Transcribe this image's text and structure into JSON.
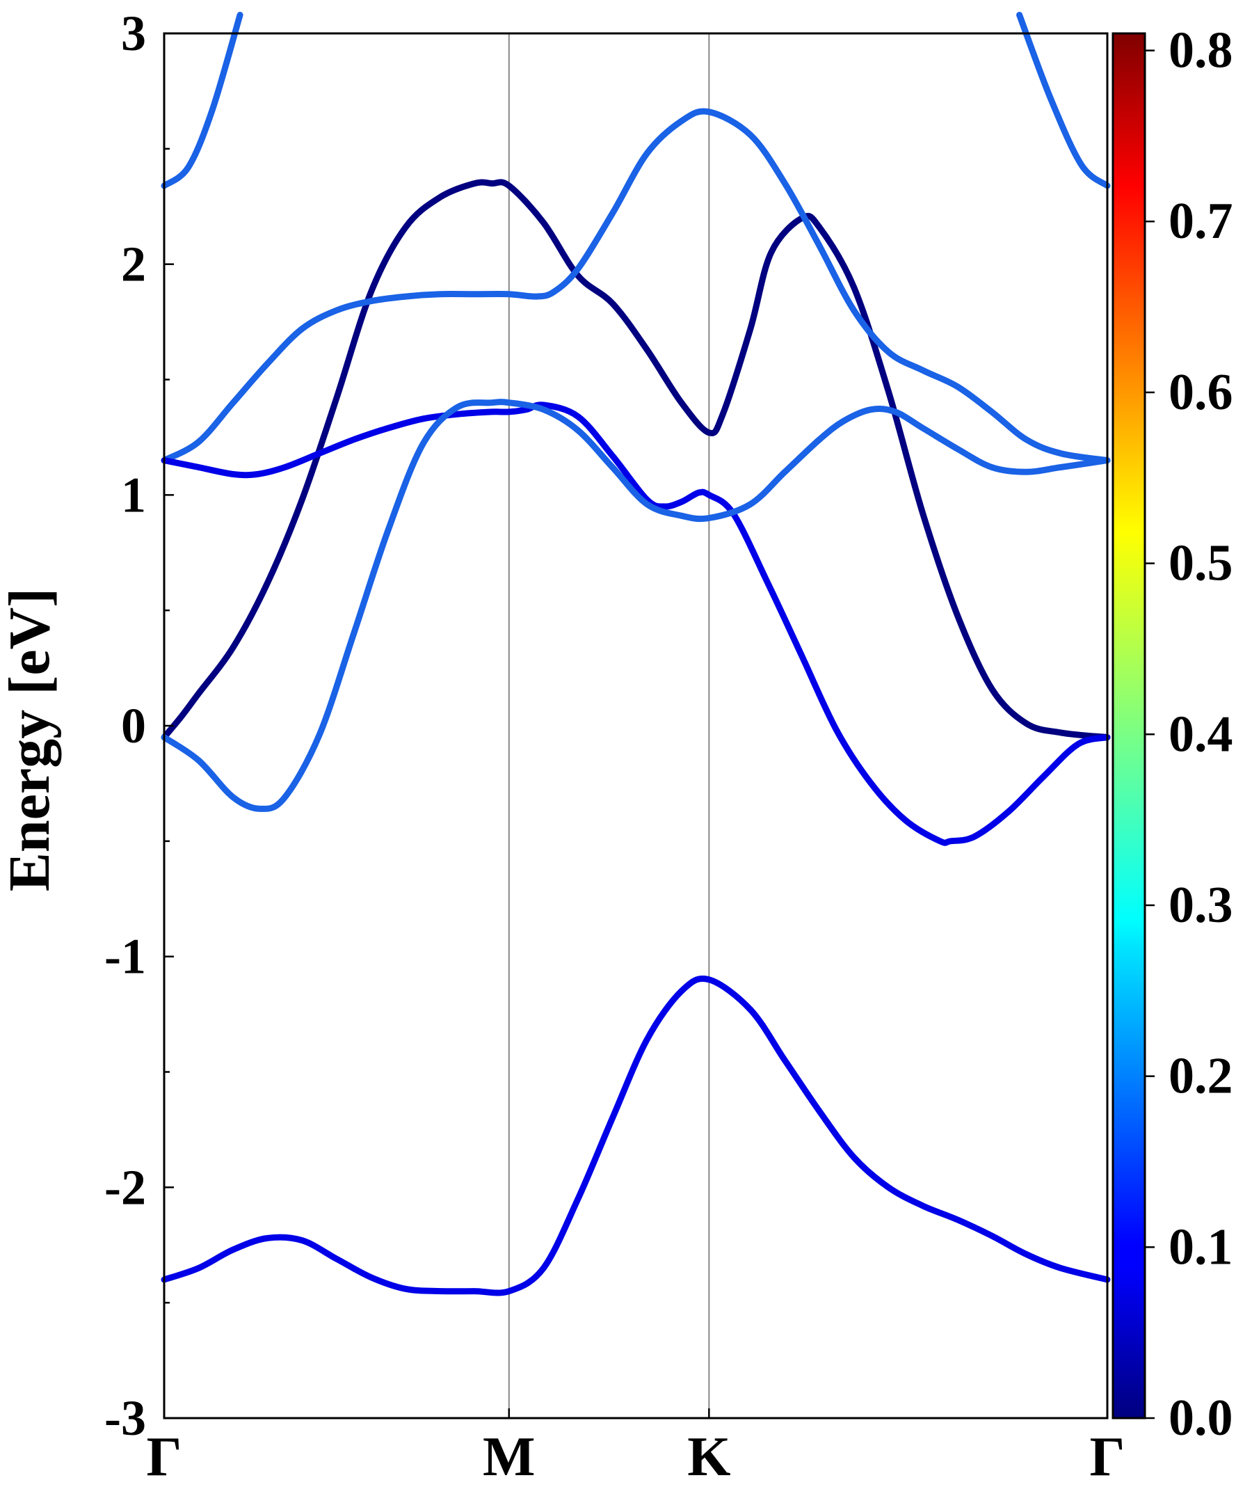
{
  "chart_data": {
    "type": "line",
    "title": "",
    "xlabel": "",
    "ylabel": "Energy [eV]",
    "x_ticks": [
      {
        "label": "Γ",
        "pos": 0
      },
      {
        "label": "M",
        "pos": 1
      },
      {
        "label": "K",
        "pos": 1.58
      },
      {
        "label": "Γ",
        "pos": 2.735
      }
    ],
    "xlim": [
      0,
      2.735
    ],
    "ylim": [
      -3,
      3
    ],
    "y_ticks": [
      "-3",
      "-2",
      "-1",
      "0",
      "1",
      "2",
      "3"
    ],
    "grid": false,
    "colorbar": {
      "colormap": "jet",
      "range": [
        0,
        0.81
      ],
      "ticks": [
        "0.0",
        "0.1",
        "0.2",
        "0.3",
        "0.4",
        "0.5",
        "0.6",
        "0.7",
        "0.8"
      ]
    },
    "series": [
      {
        "color": "#1A62E6",
        "points": [
          [
            0,
            2.34
          ],
          [
            0.07,
            2.42
          ],
          [
            0.14,
            2.67
          ],
          [
            0.22,
            3.08
          ]
        ]
      },
      {
        "color": "#1A62E6",
        "points": [
          [
            2.48,
            3.08
          ],
          [
            2.57,
            2.72
          ],
          [
            2.66,
            2.43
          ],
          [
            2.735,
            2.34
          ]
        ]
      },
      {
        "color": "#000080",
        "points": [
          [
            0,
            -0.05
          ],
          [
            0.05,
            0.04
          ],
          [
            0.1,
            0.14
          ],
          [
            0.2,
            0.34
          ],
          [
            0.3,
            0.62
          ],
          [
            0.4,
            0.98
          ],
          [
            0.5,
            1.42
          ],
          [
            0.6,
            1.88
          ],
          [
            0.7,
            2.16
          ],
          [
            0.8,
            2.29
          ],
          [
            0.9,
            2.35
          ],
          [
            0.95,
            2.35
          ],
          [
            1.0,
            2.34
          ],
          [
            1.1,
            2.18
          ],
          [
            1.2,
            1.95
          ],
          [
            1.3,
            1.83
          ],
          [
            1.4,
            1.63
          ],
          [
            1.5,
            1.4
          ],
          [
            1.58,
            1.27
          ],
          [
            1.62,
            1.35
          ],
          [
            1.7,
            1.72
          ],
          [
            1.76,
            2.05
          ],
          [
            1.85,
            2.2
          ],
          [
            1.9,
            2.16
          ],
          [
            2.0,
            1.9
          ],
          [
            2.1,
            1.45
          ],
          [
            2.2,
            0.92
          ],
          [
            2.3,
            0.48
          ],
          [
            2.4,
            0.16
          ],
          [
            2.5,
            0.01
          ],
          [
            2.6,
            -0.03
          ],
          [
            2.735,
            -0.05
          ]
        ]
      },
      {
        "color": "#1A62E6",
        "points": [
          [
            0,
            1.15
          ],
          [
            0.1,
            1.23
          ],
          [
            0.2,
            1.4
          ],
          [
            0.3,
            1.57
          ],
          [
            0.4,
            1.72
          ],
          [
            0.5,
            1.8
          ],
          [
            0.6,
            1.84
          ],
          [
            0.7,
            1.86
          ],
          [
            0.8,
            1.87
          ],
          [
            0.9,
            1.87
          ],
          [
            1.0,
            1.87
          ],
          [
            1.08,
            1.86
          ],
          [
            1.13,
            1.88
          ],
          [
            1.2,
            1.98
          ],
          [
            1.3,
            2.22
          ],
          [
            1.4,
            2.48
          ],
          [
            1.5,
            2.62
          ],
          [
            1.58,
            2.66
          ],
          [
            1.7,
            2.56
          ],
          [
            1.8,
            2.35
          ],
          [
            1.9,
            2.08
          ],
          [
            2.0,
            1.8
          ],
          [
            2.1,
            1.62
          ],
          [
            2.2,
            1.54
          ],
          [
            2.3,
            1.47
          ],
          [
            2.4,
            1.36
          ],
          [
            2.5,
            1.24
          ],
          [
            2.6,
            1.18
          ],
          [
            2.735,
            1.15
          ]
        ]
      },
      {
        "color": "#0000E8",
        "points": [
          [
            0,
            1.15
          ],
          [
            0.1,
            1.12
          ],
          [
            0.2,
            1.09
          ],
          [
            0.27,
            1.09
          ],
          [
            0.35,
            1.12
          ],
          [
            0.45,
            1.18
          ],
          [
            0.55,
            1.24
          ],
          [
            0.65,
            1.29
          ],
          [
            0.75,
            1.33
          ],
          [
            0.85,
            1.35
          ],
          [
            0.95,
            1.36
          ],
          [
            1.0,
            1.36
          ],
          [
            1.05,
            1.37
          ],
          [
            1.1,
            1.39
          ],
          [
            1.2,
            1.34
          ],
          [
            1.3,
            1.17
          ],
          [
            1.4,
            0.98
          ],
          [
            1.45,
            0.95
          ],
          [
            1.5,
            0.97
          ],
          [
            1.55,
            1.01
          ],
          [
            1.58,
            1.0
          ],
          [
            1.65,
            0.92
          ],
          [
            1.75,
            0.62
          ],
          [
            1.85,
            0.3
          ],
          [
            1.95,
            -0.02
          ],
          [
            2.05,
            -0.25
          ],
          [
            2.15,
            -0.41
          ],
          [
            2.25,
            -0.5
          ],
          [
            2.28,
            -0.5
          ],
          [
            2.35,
            -0.48
          ],
          [
            2.45,
            -0.37
          ],
          [
            2.55,
            -0.22
          ],
          [
            2.65,
            -0.08
          ],
          [
            2.735,
            -0.05
          ]
        ]
      },
      {
        "color": "#1A62E6",
        "points": [
          [
            0,
            -0.05
          ],
          [
            0.1,
            -0.15
          ],
          [
            0.2,
            -0.31
          ],
          [
            0.28,
            -0.36
          ],
          [
            0.35,
            -0.31
          ],
          [
            0.45,
            -0.04
          ],
          [
            0.55,
            0.4
          ],
          [
            0.65,
            0.85
          ],
          [
            0.75,
            1.22
          ],
          [
            0.85,
            1.38
          ],
          [
            0.95,
            1.4
          ],
          [
            1.0,
            1.4
          ],
          [
            1.1,
            1.37
          ],
          [
            1.2,
            1.28
          ],
          [
            1.3,
            1.12
          ],
          [
            1.4,
            0.96
          ],
          [
            1.5,
            0.91
          ],
          [
            1.58,
            0.9
          ],
          [
            1.7,
            0.96
          ],
          [
            1.8,
            1.1
          ],
          [
            1.9,
            1.24
          ],
          [
            1.97,
            1.32
          ],
          [
            2.05,
            1.37
          ],
          [
            2.12,
            1.36
          ],
          [
            2.2,
            1.29
          ],
          [
            2.3,
            1.2
          ],
          [
            2.4,
            1.12
          ],
          [
            2.5,
            1.1
          ],
          [
            2.6,
            1.12
          ],
          [
            2.735,
            1.15
          ]
        ]
      },
      {
        "color": "#0000E8",
        "points": [
          [
            0,
            -2.4
          ],
          [
            0.1,
            -2.35
          ],
          [
            0.2,
            -2.27
          ],
          [
            0.3,
            -2.22
          ],
          [
            0.4,
            -2.23
          ],
          [
            0.5,
            -2.31
          ],
          [
            0.6,
            -2.39
          ],
          [
            0.7,
            -2.44
          ],
          [
            0.8,
            -2.45
          ],
          [
            0.9,
            -2.45
          ],
          [
            1.0,
            -2.45
          ],
          [
            1.1,
            -2.35
          ],
          [
            1.2,
            -2.05
          ],
          [
            1.3,
            -1.7
          ],
          [
            1.4,
            -1.36
          ],
          [
            1.5,
            -1.15
          ],
          [
            1.58,
            -1.1
          ],
          [
            1.7,
            -1.23
          ],
          [
            1.8,
            -1.45
          ],
          [
            1.9,
            -1.67
          ],
          [
            2.0,
            -1.87
          ],
          [
            2.1,
            -2.0
          ],
          [
            2.2,
            -2.08
          ],
          [
            2.3,
            -2.14
          ],
          [
            2.4,
            -2.21
          ],
          [
            2.5,
            -2.29
          ],
          [
            2.6,
            -2.35
          ],
          [
            2.735,
            -2.4
          ]
        ]
      }
    ]
  }
}
